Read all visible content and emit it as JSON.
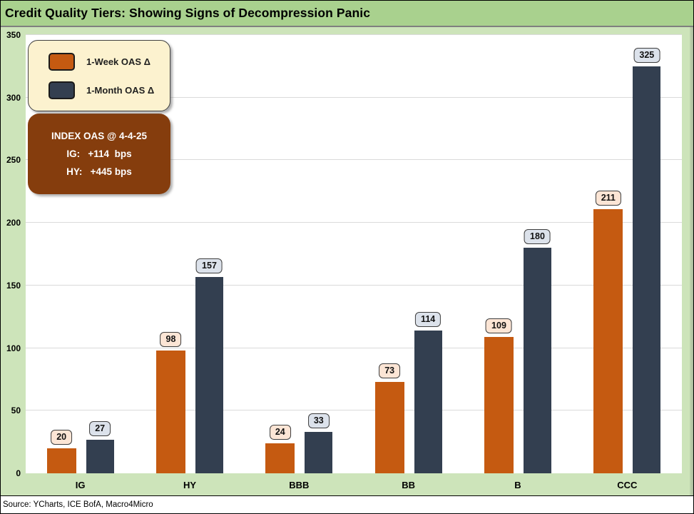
{
  "title_bar": {
    "title": "Credit Quality Tiers: Showing Signs of Decompression Panic"
  },
  "source_note": "Source: YCharts, ICE BofA, Macro4Micro",
  "colors": {
    "title_bar_bg": "#a9d18e",
    "chart_surround_bg": "#cde4ba",
    "plot_bg": "#ffffff",
    "gridline": "#dadada",
    "week_bar_orange": "#c55a11",
    "month_bar_navy": "#333f50",
    "week_label_bg": "#fce5d5",
    "month_label_bg": "#dce2eb",
    "legend_bg": "#fcf2cf",
    "annotation_bg": "#853d0d",
    "annotation_text": "#ffffff"
  },
  "chart_data": {
    "type": "bar",
    "title": "Credit Quality Tiers: Showing Signs of Decompression Panic",
    "categories": [
      "IG",
      "HY",
      "BBB",
      "BB",
      "B",
      "CCC"
    ],
    "series": [
      {
        "name": "1-Week OAS Δ",
        "color": "#c55a11",
        "label_bg": "#fce5d5",
        "values": [
          20,
          98,
          24,
          73,
          109,
          211
        ]
      },
      {
        "name": "1-Month OAS Δ",
        "color": "#333f50",
        "label_bg": "#dce2eb",
        "values": [
          27,
          157,
          33,
          114,
          180,
          325
        ]
      }
    ],
    "ylim": [
      0,
      350
    ],
    "ytick_step": 50,
    "grid": true,
    "legend_position": "top-left",
    "data_labels": true,
    "annotation": {
      "lines": [
        "INDEX OAS @ 4-4-25",
        "IG:   +114  bps",
        "HY:   +445 bps"
      ]
    }
  }
}
